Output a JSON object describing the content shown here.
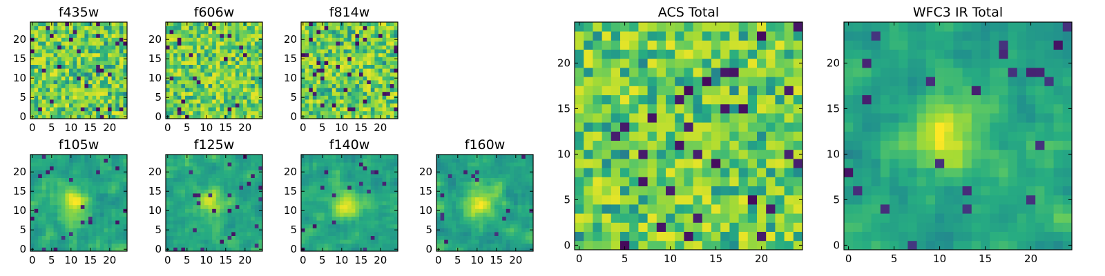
{
  "chart_data": [
    {
      "type": "heatmap",
      "title": "f435w",
      "grid_size": 25,
      "xticks": [
        "0",
        "5",
        "10",
        "15",
        "20"
      ],
      "yticks": [
        "0",
        "5",
        "10",
        "15",
        "20"
      ],
      "xlim": [
        -0.5,
        24.5
      ],
      "ylim": [
        -0.5,
        24.5
      ],
      "colormap": "viridis",
      "value_range": [
        0,
        1
      ],
      "pattern": "noise"
    },
    {
      "type": "heatmap",
      "title": "f606w",
      "grid_size": 25,
      "xticks": [
        "0",
        "5",
        "10",
        "15",
        "20"
      ],
      "yticks": [
        "0",
        "5",
        "10",
        "15",
        "20"
      ],
      "xlim": [
        -0.5,
        24.5
      ],
      "ylim": [
        -0.5,
        24.5
      ],
      "colormap": "viridis",
      "value_range": [
        0,
        1
      ],
      "pattern": "noise"
    },
    {
      "type": "heatmap",
      "title": "f814w",
      "grid_size": 25,
      "xticks": [
        "0",
        "5",
        "10",
        "15",
        "20"
      ],
      "yticks": [
        "0",
        "5",
        "10",
        "15",
        "20"
      ],
      "xlim": [
        -0.5,
        24.5
      ],
      "ylim": [
        -0.5,
        24.5
      ],
      "colormap": "viridis",
      "value_range": [
        0,
        1
      ],
      "pattern": "noise"
    },
    {
      "type": "heatmap",
      "title": "f105w",
      "grid_size": 25,
      "xticks": [
        "0",
        "5",
        "10",
        "15",
        "20"
      ],
      "yticks": [
        "0",
        "5",
        "10",
        "15",
        "20"
      ],
      "xlim": [
        -0.5,
        24.5
      ],
      "ylim": [
        -0.5,
        24.5
      ],
      "colormap": "viridis",
      "value_range": [
        0,
        1
      ],
      "pattern": "smooth-center"
    },
    {
      "type": "heatmap",
      "title": "f125w",
      "grid_size": 25,
      "xticks": [
        "0",
        "5",
        "10",
        "15",
        "20"
      ],
      "yticks": [
        "0",
        "5",
        "10",
        "15",
        "20"
      ],
      "xlim": [
        -0.5,
        24.5
      ],
      "ylim": [
        -0.5,
        24.5
      ],
      "colormap": "viridis",
      "value_range": [
        0,
        1
      ],
      "pattern": "smooth-center"
    },
    {
      "type": "heatmap",
      "title": "f140w",
      "grid_size": 25,
      "xticks": [
        "0",
        "5",
        "10",
        "15",
        "20"
      ],
      "yticks": [
        "0",
        "5",
        "10",
        "15",
        "20"
      ],
      "xlim": [
        -0.5,
        24.5
      ],
      "ylim": [
        -0.5,
        24.5
      ],
      "colormap": "viridis",
      "value_range": [
        0,
        1
      ],
      "pattern": "smooth-center"
    },
    {
      "type": "heatmap",
      "title": "f160w",
      "grid_size": 25,
      "xticks": [
        "0",
        "5",
        "10",
        "15",
        "20"
      ],
      "yticks": [
        "0",
        "5",
        "10",
        "15",
        "20"
      ],
      "xlim": [
        -0.5,
        24.5
      ],
      "ylim": [
        -0.5,
        24.5
      ],
      "colormap": "viridis",
      "value_range": [
        0,
        1
      ],
      "pattern": "smooth-center"
    },
    {
      "type": "heatmap",
      "title": "ACS Total",
      "grid_size": 25,
      "xticks": [
        "0",
        "5",
        "10",
        "15",
        "20"
      ],
      "yticks": [
        "0",
        "5",
        "10",
        "15",
        "20"
      ],
      "xlim": [
        -0.5,
        24.5
      ],
      "ylim": [
        -0.5,
        24.5
      ],
      "colormap": "viridis",
      "value_range": [
        0,
        1
      ],
      "pattern": "noise"
    },
    {
      "type": "heatmap",
      "title": "WFC3 IR Total",
      "grid_size": 25,
      "xticks": [
        "0",
        "5",
        "10",
        "15",
        "20"
      ],
      "yticks": [
        "0",
        "5",
        "10",
        "15",
        "20"
      ],
      "xlim": [
        -0.5,
        24.5
      ],
      "ylim": [
        -0.5,
        24.5
      ],
      "colormap": "viridis",
      "value_range": [
        0,
        1
      ],
      "pattern": "smooth-center"
    }
  ]
}
